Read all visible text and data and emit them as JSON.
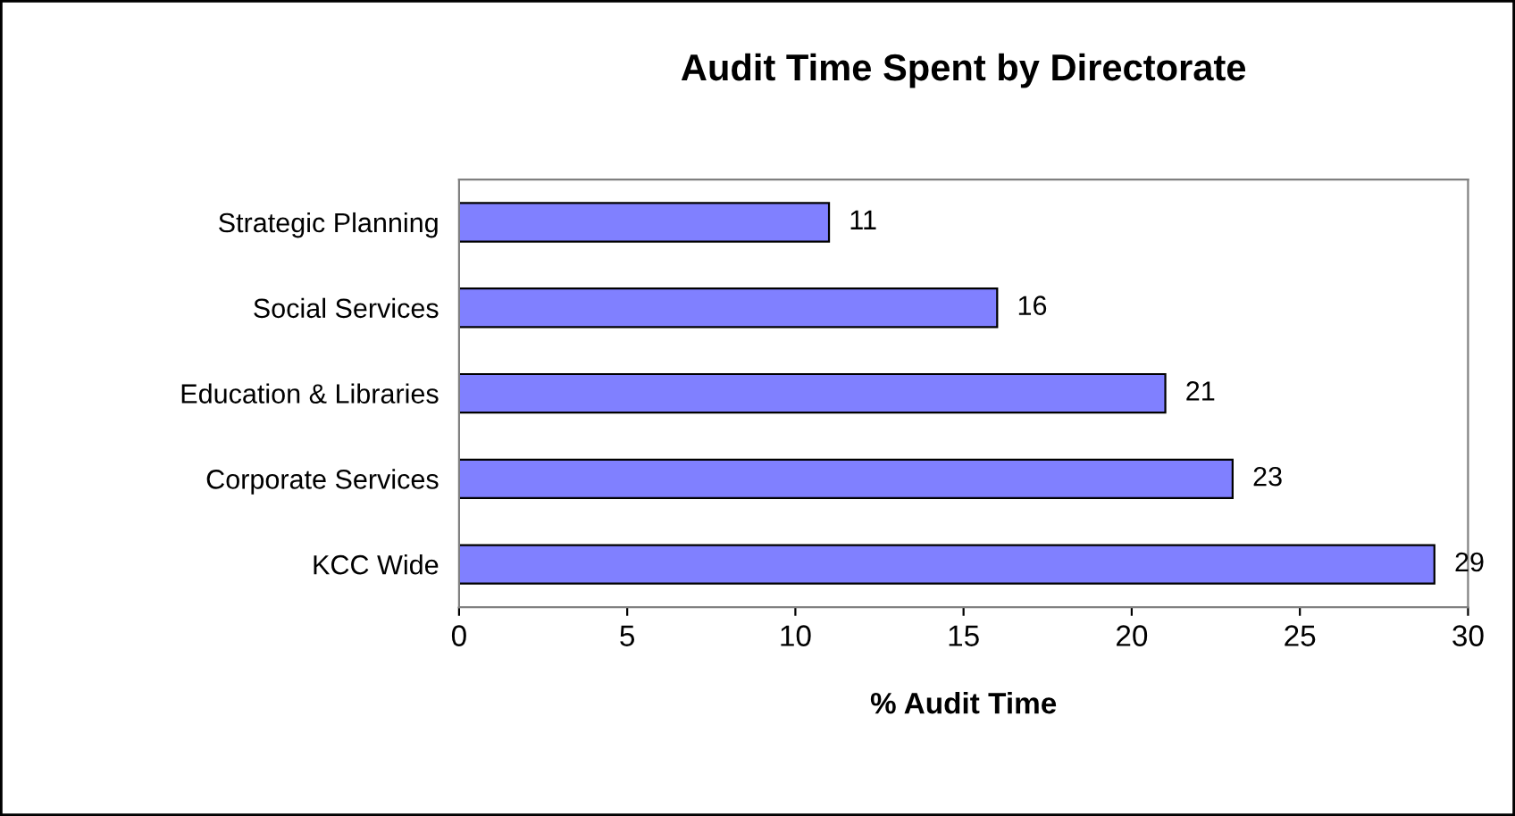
{
  "chart_data": {
    "type": "bar",
    "orientation": "horizontal",
    "title": "Audit Time Spent by Directorate",
    "xlabel": "% Audit Time",
    "categories": [
      "Strategic Planning",
      "Social Services",
      "Education & Libraries",
      "Corporate Services",
      "KCC Wide"
    ],
    "values": [
      11,
      16,
      21,
      23,
      29
    ],
    "color": "#8080ff",
    "data_labels": true,
    "xlim": [
      0,
      30
    ],
    "xticks": [
      0,
      5,
      10,
      15,
      20,
      25,
      30
    ],
    "grid": false,
    "legend": false
  }
}
